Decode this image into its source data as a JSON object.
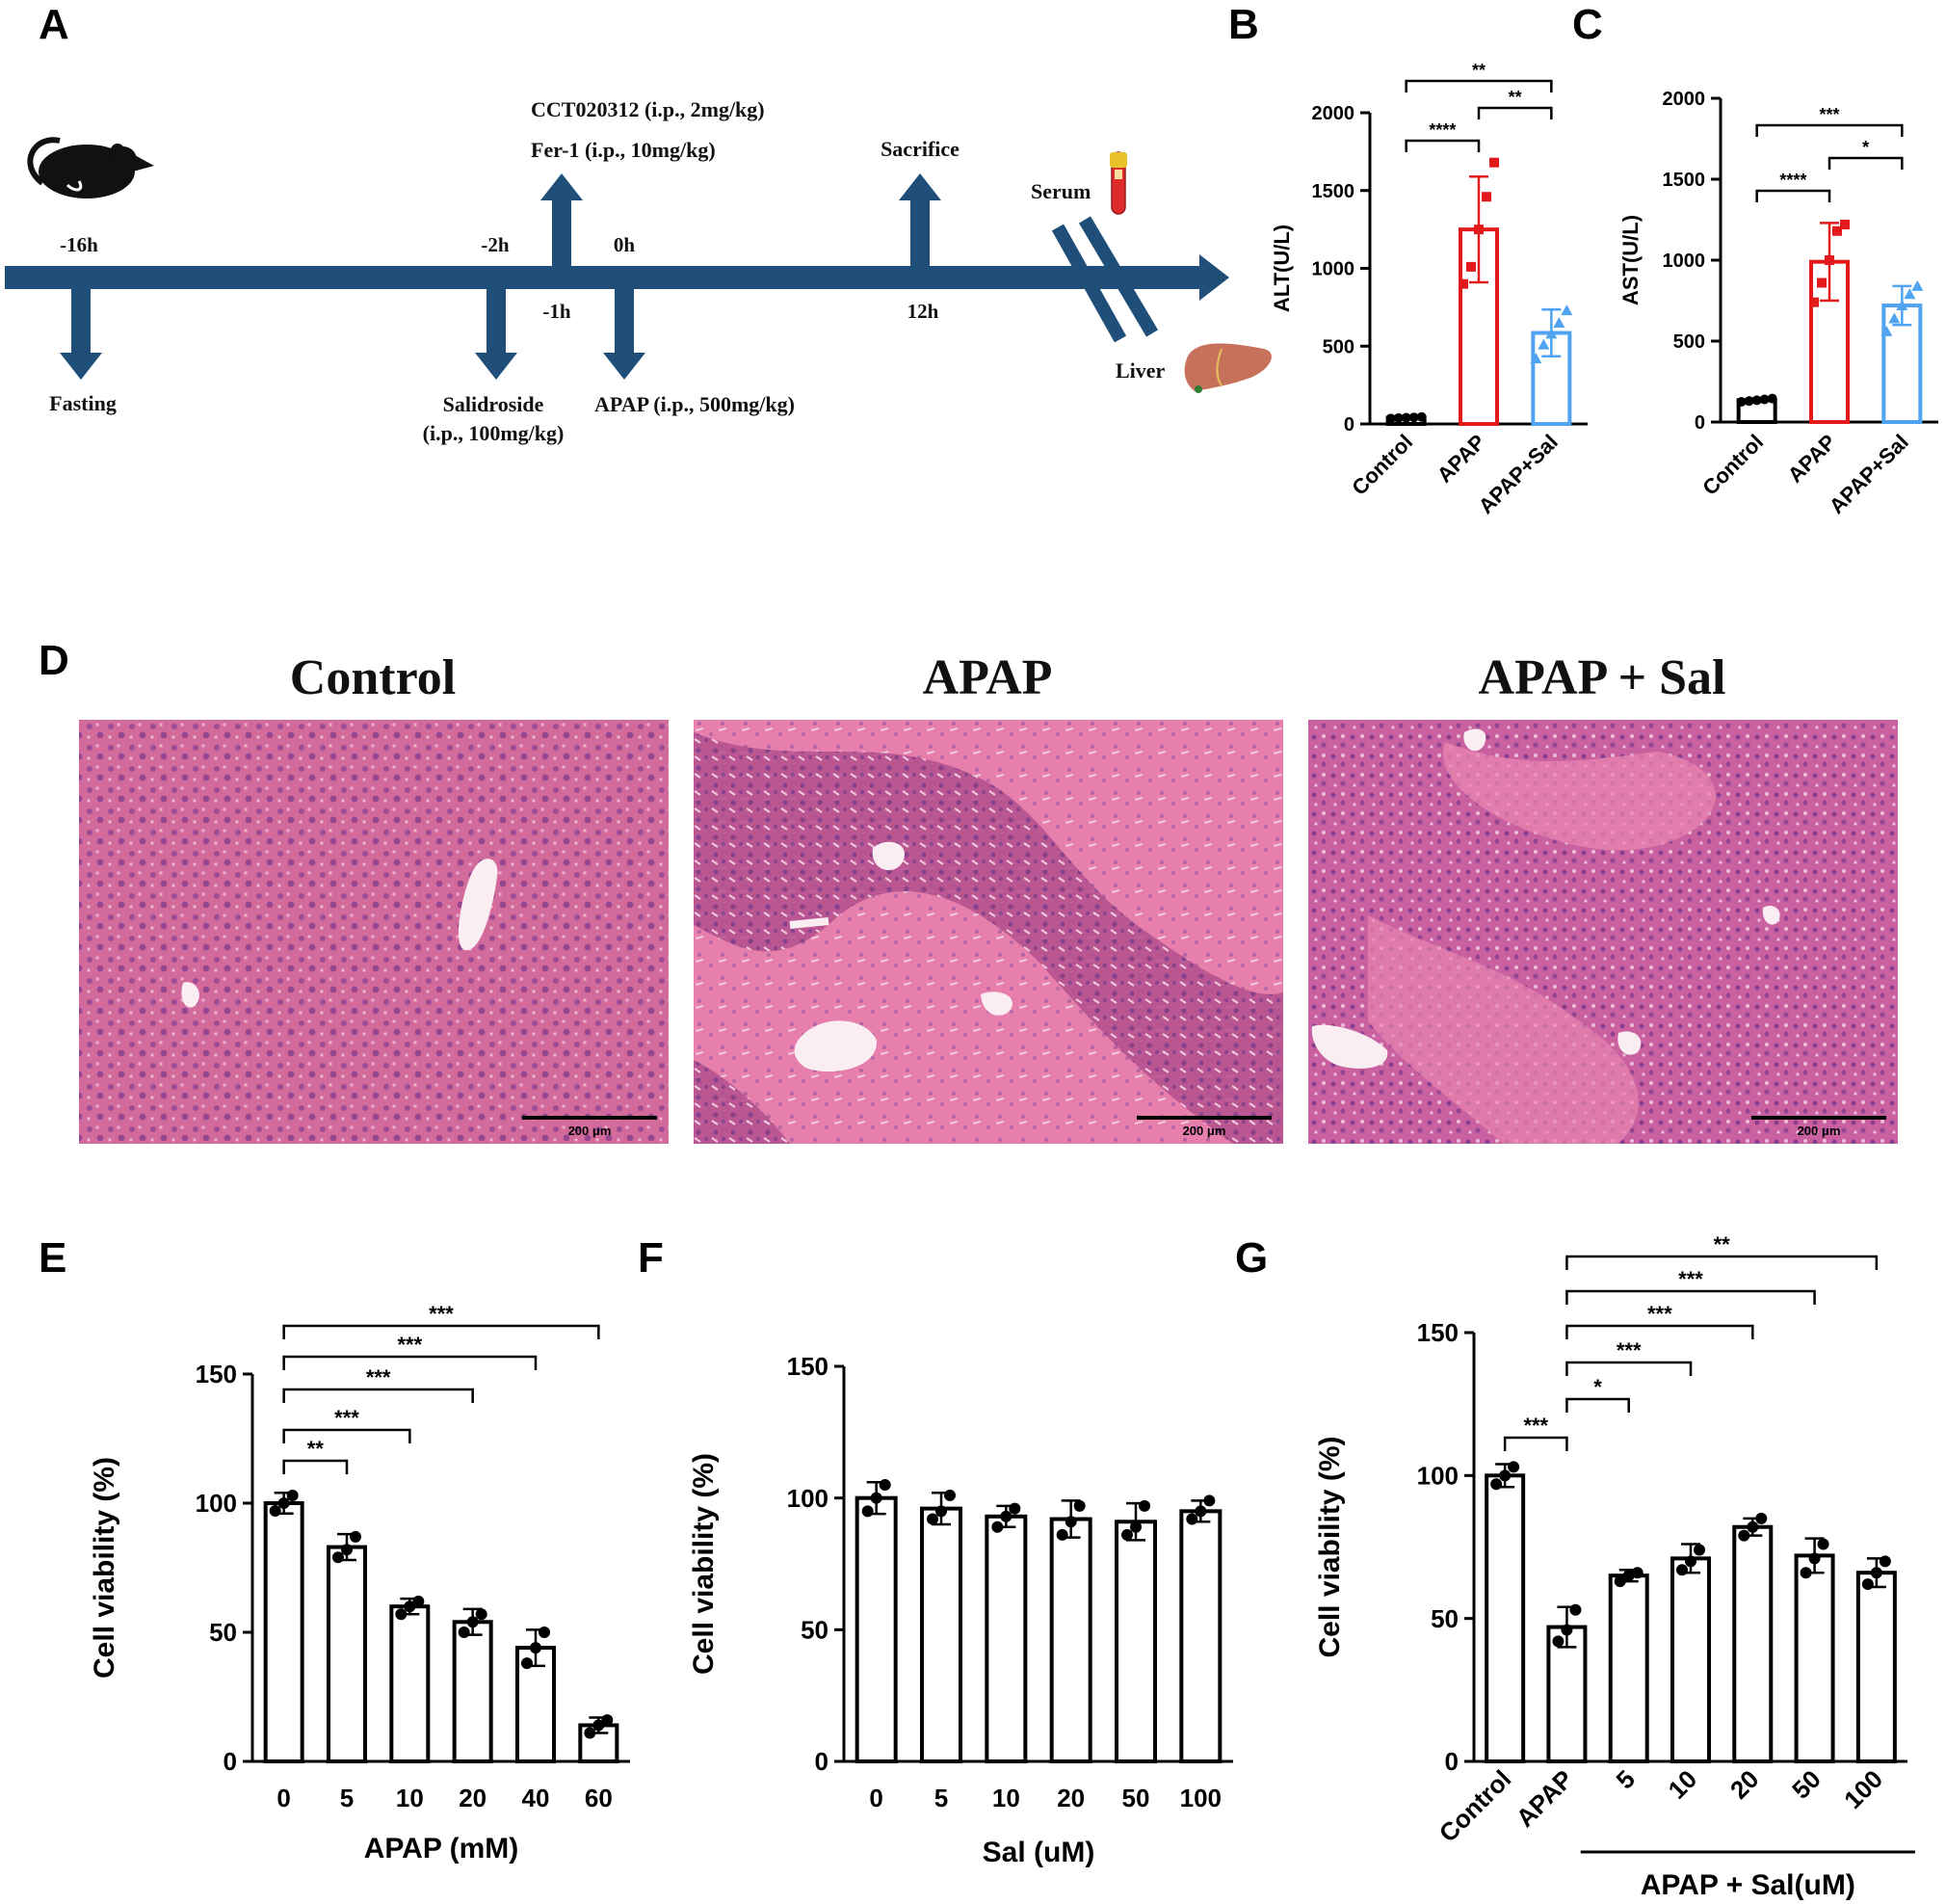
{
  "panels": {
    "A": {
      "letter": "A",
      "timeline": {
        "times": [
          "-16h",
          "-2h",
          "-1h",
          "0h",
          "12h"
        ],
        "events": {
          "fasting": "Fasting",
          "salidroside": [
            "Salidroside",
            "(i.p., 100mg/kg)"
          ],
          "cct": "CCT020312  (i.p., 2mg/kg)",
          "fer1": "Fer-1 (i.p., 10mg/kg)",
          "apap": "APAP (i.p., 500mg/kg)",
          "sacrifice": "Sacrifice",
          "serum": "Serum",
          "liver": "Liver"
        },
        "colors": {
          "arrow": "#1f4e79"
        }
      }
    },
    "D": {
      "letter": "D",
      "titles": [
        "Control",
        "APAP",
        "APAP + Sal"
      ],
      "scale_bar": "200 μm",
      "colors": {
        "tissue": "#d7679b",
        "dark": "#9b3c8d",
        "pale": "#f0a7c4"
      }
    },
    "B_letter": "B",
    "C_letter": "C",
    "E_letter": "E",
    "F_letter": "F",
    "G_letter": "G"
  },
  "chart_data": [
    {
      "id": "B",
      "type": "bar",
      "ylabel": "ALT(U/L)",
      "ylim": [
        0,
        2000
      ],
      "yticks": [
        0,
        500,
        1000,
        1500,
        2000
      ],
      "categories": [
        "Control",
        "APAP",
        "APAP+Sal"
      ],
      "values": [
        40,
        1250,
        585
      ],
      "errors": [
        10,
        340,
        150
      ],
      "colors": [
        "#000000",
        "#e31a1c",
        "#4fa3f0"
      ],
      "markers": [
        "circle",
        "square",
        "triangle"
      ],
      "points": [
        [
          35,
          38,
          40,
          42,
          45
        ],
        [
          900,
          1010,
          1250,
          1460,
          1680
        ],
        [
          420,
          510,
          580,
          650,
          730
        ]
      ],
      "significance": [
        {
          "from": 0,
          "to": 2,
          "label": "**"
        },
        {
          "from": 1,
          "to": 2,
          "label": "**"
        },
        {
          "from": 0,
          "to": 1,
          "label": "****"
        }
      ]
    },
    {
      "id": "C",
      "type": "bar",
      "ylabel": "AST(U/L)",
      "ylim": [
        0,
        2000
      ],
      "yticks": [
        0,
        500,
        1000,
        1500,
        2000
      ],
      "categories": [
        "Control",
        "APAP",
        "APAP+Sal"
      ],
      "values": [
        135,
        990,
        720
      ],
      "errors": [
        10,
        240,
        120
      ],
      "colors": [
        "#000000",
        "#e31a1c",
        "#4fa3f0"
      ],
      "markers": [
        "circle",
        "square",
        "triangle"
      ],
      "points": [
        [
          125,
          130,
          135,
          140,
          145
        ],
        [
          740,
          860,
          1000,
          1180,
          1220
        ],
        [
          560,
          640,
          720,
          790,
          840
        ]
      ],
      "significance": [
        {
          "from": 0,
          "to": 2,
          "label": "***"
        },
        {
          "from": 1,
          "to": 2,
          "label": "*"
        },
        {
          "from": 0,
          "to": 1,
          "label": "****"
        }
      ]
    },
    {
      "id": "E",
      "type": "bar",
      "xlabel": "APAP (mM)",
      "ylabel": "Cell viability (%)",
      "ylim": [
        0,
        150
      ],
      "yticks": [
        0,
        50,
        100,
        150
      ],
      "categories": [
        "0",
        "5",
        "10",
        "20",
        "40",
        "60"
      ],
      "values": [
        100,
        83,
        60,
        54,
        44,
        14
      ],
      "errors": [
        4,
        5,
        3,
        5,
        7,
        3
      ],
      "points": [
        [
          97,
          100,
          103
        ],
        [
          79,
          82,
          87
        ],
        [
          57,
          60,
          62
        ],
        [
          50,
          54,
          57
        ],
        [
          38,
          44,
          50
        ],
        [
          11,
          14,
          16
        ]
      ],
      "significance": [
        {
          "from": 0,
          "to": 5,
          "label": "***"
        },
        {
          "from": 0,
          "to": 4,
          "label": "***"
        },
        {
          "from": 0,
          "to": 3,
          "label": "***"
        },
        {
          "from": 0,
          "to": 2,
          "label": "***"
        },
        {
          "from": 0,
          "to": 1,
          "label": "**"
        }
      ]
    },
    {
      "id": "F",
      "type": "bar",
      "xlabel": "Sal (uM)",
      "ylabel": "Cell viability (%)",
      "ylim": [
        0,
        150
      ],
      "yticks": [
        0,
        50,
        100,
        150
      ],
      "categories": [
        "0",
        "5",
        "10",
        "20",
        "50",
        "100"
      ],
      "values": [
        100,
        96,
        93,
        92,
        91,
        95
      ],
      "errors": [
        6,
        6,
        4,
        7,
        7,
        4
      ],
      "points": [
        [
          95,
          100,
          105
        ],
        [
          92,
          95,
          101
        ],
        [
          89,
          93,
          96
        ],
        [
          86,
          91,
          97
        ],
        [
          86,
          89,
          97
        ],
        [
          92,
          95,
          99
        ]
      ],
      "significance": []
    },
    {
      "id": "G",
      "type": "bar",
      "xlabel": "APAP + Sal(uM)",
      "ylabel": "Cell viability (%)",
      "ylim": [
        0,
        150
      ],
      "yticks": [
        0,
        50,
        100,
        150
      ],
      "categories": [
        "Control",
        "APAP",
        "5",
        "10",
        "20",
        "50",
        "100"
      ],
      "values": [
        100,
        47,
        65,
        71,
        82,
        72,
        66
      ],
      "errors": [
        4,
        7,
        2,
        5,
        3,
        6,
        5
      ],
      "points": [
        [
          97,
          100,
          103
        ],
        [
          42,
          46,
          53
        ],
        [
          63,
          65,
          66
        ],
        [
          67,
          70,
          74
        ],
        [
          79,
          82,
          85
        ],
        [
          66,
          71,
          76
        ],
        [
          62,
          66,
          70
        ]
      ],
      "significance": [
        {
          "from": 1,
          "to": 6,
          "label": "**"
        },
        {
          "from": 1,
          "to": 5,
          "label": "***"
        },
        {
          "from": 1,
          "to": 4,
          "label": "***"
        },
        {
          "from": 1,
          "to": 3,
          "label": "***"
        },
        {
          "from": 1,
          "to": 2,
          "label": "*"
        },
        {
          "from": 0,
          "to": 1,
          "label": "***"
        }
      ]
    }
  ]
}
